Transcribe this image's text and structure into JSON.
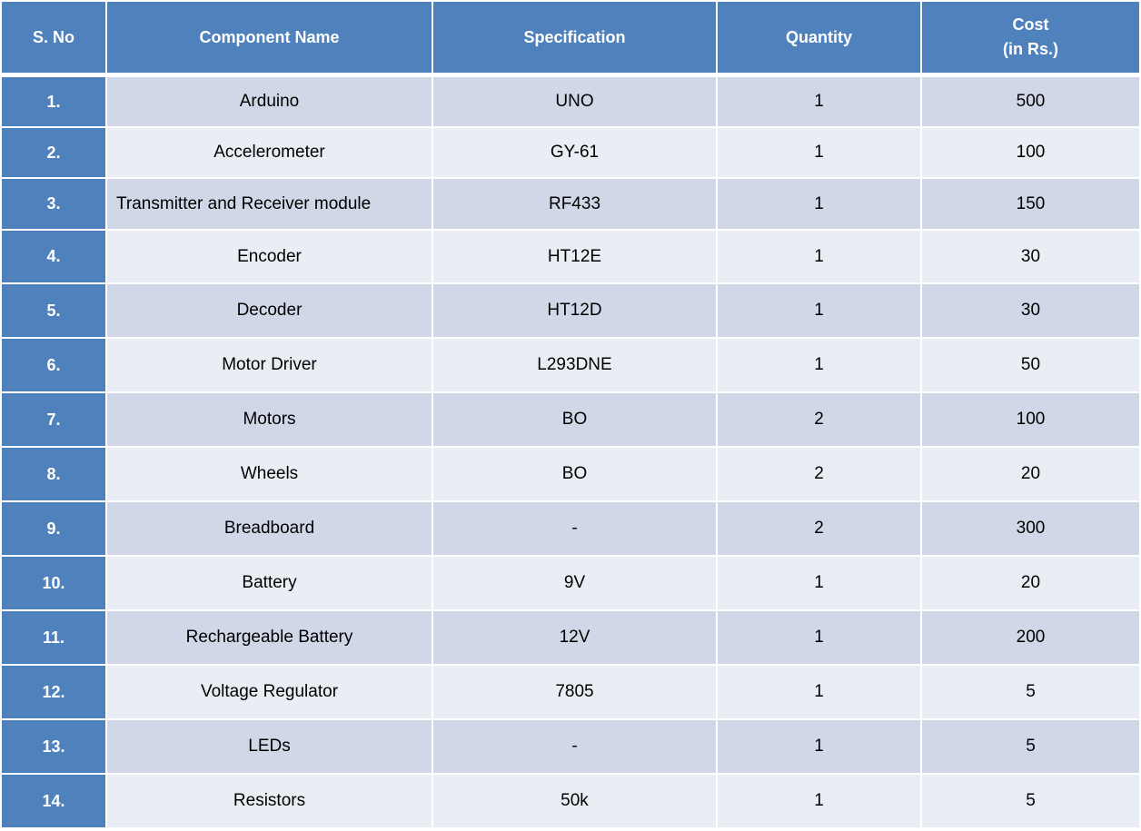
{
  "table": {
    "headers": {
      "sno": "S. No",
      "name": "Component Name",
      "spec": "Specification",
      "qty": "Quantity",
      "cost_line1": "Cost",
      "cost_line2": "(in Rs.)"
    },
    "rows": [
      {
        "sno": "1.",
        "name": "Arduino",
        "spec": "UNO",
        "qty": "1",
        "cost": "500"
      },
      {
        "sno": "2.",
        "name": "Accelerometer",
        "spec": "GY-61",
        "qty": "1",
        "cost": "100"
      },
      {
        "sno": "3.",
        "name": "Transmitter and Receiver module",
        "spec": "RF433",
        "qty": "1",
        "cost": "150"
      },
      {
        "sno": "4.",
        "name": "Encoder",
        "spec": "HT12E",
        "qty": "1",
        "cost": "30"
      },
      {
        "sno": "5.",
        "name": "Decoder",
        "spec": "HT12D",
        "qty": "1",
        "cost": "30"
      },
      {
        "sno": "6.",
        "name": "Motor Driver",
        "spec": "L293DNE",
        "qty": "1",
        "cost": "50"
      },
      {
        "sno": "7.",
        "name": "Motors",
        "spec": "BO",
        "qty": "2",
        "cost": "100"
      },
      {
        "sno": "8.",
        "name": "Wheels",
        "spec": "BO",
        "qty": "2",
        "cost": "20"
      },
      {
        "sno": "9.",
        "name": "Breadboard",
        "spec": "-",
        "qty": "2",
        "cost": "300"
      },
      {
        "sno": "10.",
        "name": "Battery",
        "spec": "9V",
        "qty": "1",
        "cost": "20"
      },
      {
        "sno": "11.",
        "name": "Rechargeable Battery",
        "spec": "12V",
        "qty": "1",
        "cost": "200"
      },
      {
        "sno": "12.",
        "name": "Voltage Regulator",
        "spec": "7805",
        "qty": "1",
        "cost": "5"
      },
      {
        "sno": "13.",
        "name": "LEDs",
        "spec": "-",
        "qty": "1",
        "cost": "5"
      },
      {
        "sno": "14.",
        "name": "Resistors",
        "spec": "50k",
        "qty": "1",
        "cost": "5"
      }
    ]
  },
  "colors": {
    "header_bg": "#4f81bd",
    "row_odd_bg": "#d0d8e8",
    "row_even_bg": "#e9edf4",
    "header_text": "#ffffff"
  }
}
